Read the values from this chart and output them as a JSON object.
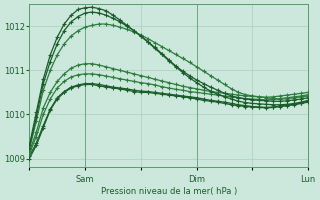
{
  "background_color": "#cce8dc",
  "plot_bg_color": "#cce8dc",
  "grid_color": "#aacfbe",
  "line_colors": [
    "#1a5c2a",
    "#1a5c2a",
    "#2e7d3e",
    "#2e7d3e",
    "#2e7d3e",
    "#1a5c2a",
    "#1a5c2a"
  ],
  "xlabel": "Pression niveau de la mer( hPa )",
  "ylim": [
    1008.8,
    1012.5
  ],
  "yticks": [
    1009,
    1010,
    1011,
    1012
  ],
  "xtick_labels": [
    "",
    "Sam",
    "",
    "Dim",
    "",
    "Lun"
  ],
  "xtick_positions": [
    0,
    24,
    48,
    72,
    96,
    120
  ],
  "total_hours": 120,
  "series": [
    [
      1009.0,
      1009.3,
      1009.7,
      1010.1,
      1010.35,
      1010.5,
      1010.6,
      1010.65,
      1010.68,
      1010.68,
      1010.65,
      1010.62,
      1010.6,
      1010.58,
      1010.55,
      1010.52,
      1010.5,
      1010.5,
      1010.48,
      1010.46,
      1010.44,
      1010.42,
      1010.4,
      1010.38,
      1010.35,
      1010.32,
      1010.3,
      1010.28,
      1010.25,
      1010.22,
      1010.2,
      1010.18,
      1010.17,
      1010.16,
      1010.15,
      1010.16,
      1010.18,
      1010.2,
      1010.22,
      1010.25,
      1010.28
    ],
    [
      1009.05,
      1009.35,
      1009.75,
      1010.12,
      1010.38,
      1010.52,
      1010.62,
      1010.67,
      1010.7,
      1010.7,
      1010.68,
      1010.65,
      1010.62,
      1010.6,
      1010.58,
      1010.55,
      1010.53,
      1010.52,
      1010.5,
      1010.48,
      1010.46,
      1010.44,
      1010.42,
      1010.4,
      1010.38,
      1010.35,
      1010.32,
      1010.3,
      1010.28,
      1010.25,
      1010.22,
      1010.2,
      1010.18,
      1010.17,
      1010.16,
      1010.17,
      1010.19,
      1010.21,
      1010.23,
      1010.26,
      1010.3
    ],
    [
      1009.1,
      1009.5,
      1010.0,
      1010.35,
      1010.6,
      1010.75,
      1010.85,
      1010.9,
      1010.92,
      1010.92,
      1010.9,
      1010.87,
      1010.84,
      1010.81,
      1010.78,
      1010.75,
      1010.72,
      1010.7,
      1010.67,
      1010.63,
      1010.6,
      1010.57,
      1010.55,
      1010.52,
      1010.5,
      1010.48,
      1010.46,
      1010.44,
      1010.42,
      1010.4,
      1010.38,
      1010.36,
      1010.35,
      1010.34,
      1010.33,
      1010.34,
      1010.36,
      1010.38,
      1010.4,
      1010.42,
      1010.45
    ],
    [
      1009.15,
      1009.6,
      1010.15,
      1010.5,
      1010.75,
      1010.92,
      1011.05,
      1011.12,
      1011.15,
      1011.15,
      1011.12,
      1011.08,
      1011.04,
      1011.0,
      1010.96,
      1010.92,
      1010.88,
      1010.84,
      1010.8,
      1010.76,
      1010.72,
      1010.68,
      1010.64,
      1010.61,
      1010.58,
      1010.55,
      1010.52,
      1010.5,
      1010.48,
      1010.46,
      1010.44,
      1010.42,
      1010.41,
      1010.4,
      1010.39,
      1010.4,
      1010.42,
      1010.44,
      1010.46,
      1010.48,
      1010.5
    ],
    [
      1009.2,
      1009.85,
      1010.55,
      1011.0,
      1011.35,
      1011.6,
      1011.78,
      1011.9,
      1011.98,
      1012.02,
      1012.05,
      1012.05,
      1012.02,
      1011.98,
      1011.93,
      1011.87,
      1011.8,
      1011.72,
      1011.63,
      1011.54,
      1011.45,
      1011.36,
      1011.27,
      1011.18,
      1011.08,
      1010.98,
      1010.88,
      1010.78,
      1010.68,
      1010.58,
      1010.5,
      1010.45,
      1010.42,
      1010.4,
      1010.38,
      1010.36,
      1010.35,
      1010.36,
      1010.38,
      1010.4,
      1010.42
    ],
    [
      1009.25,
      1009.95,
      1010.7,
      1011.2,
      1011.6,
      1011.9,
      1012.1,
      1012.22,
      1012.3,
      1012.32,
      1012.3,
      1012.25,
      1012.18,
      1012.1,
      1012.0,
      1011.9,
      1011.78,
      1011.65,
      1011.52,
      1011.38,
      1011.24,
      1011.1,
      1010.98,
      1010.88,
      1010.78,
      1010.7,
      1010.62,
      1010.55,
      1010.48,
      1010.42,
      1010.38,
      1010.35,
      1010.33,
      1010.32,
      1010.31,
      1010.3,
      1010.3,
      1010.31,
      1010.33,
      1010.35,
      1010.38
    ],
    [
      1009.3,
      1010.05,
      1010.8,
      1011.35,
      1011.75,
      1012.05,
      1012.25,
      1012.38,
      1012.42,
      1012.43,
      1012.4,
      1012.35,
      1012.25,
      1012.14,
      1012.02,
      1011.9,
      1011.77,
      1011.64,
      1011.5,
      1011.36,
      1011.22,
      1011.08,
      1010.95,
      1010.83,
      1010.72,
      1010.62,
      1010.53,
      1010.46,
      1010.4,
      1010.35,
      1010.3,
      1010.27,
      1010.25,
      1010.24,
      1010.23,
      1010.22,
      1010.22,
      1010.23,
      1010.25,
      1010.28,
      1010.32
    ]
  ],
  "marker": "+",
  "markersize": 3,
  "linewidth": 0.9
}
